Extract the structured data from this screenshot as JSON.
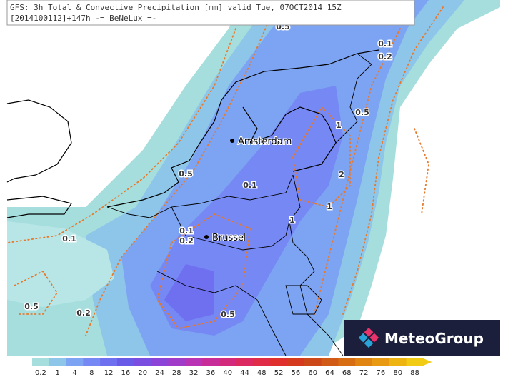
{
  "header": {
    "line1": "GFS: 3h Total & Convective Precipitation [mm] valid Tue, 07OCT2014 15Z",
    "line2": "[2014100112]+147h -= BeNeLux =-"
  },
  "cities": [
    "Amsterdam",
    "Brussel"
  ],
  "contour_labels": [
    "0.5",
    "0.1",
    "0.2",
    "0.5",
    "1",
    "2",
    "1",
    "1",
    "0.1",
    "0.5",
    "0.1",
    "0.1",
    "0.2",
    "0.5",
    "0.2",
    "0.5"
  ],
  "logo": "MeteoGroup",
  "legend": {
    "labels": [
      "0.2",
      "1",
      "4",
      "8",
      "12",
      "16",
      "20",
      "24",
      "28",
      "32",
      "36",
      "40",
      "44",
      "48",
      "52",
      "56",
      "60",
      "64",
      "68",
      "72",
      "76",
      "80",
      "88"
    ],
    "colors": [
      "#a6dede",
      "#8ec6ea",
      "#7da4f2",
      "#7688f4",
      "#6e70f0",
      "#6a5ae8",
      "#7a4ee0",
      "#8c44d8",
      "#a03cc8",
      "#b834b4",
      "#c82c98",
      "#d42a7c",
      "#dc2a60",
      "#e02c46",
      "#e0302e",
      "#d63a1e",
      "#cc4818",
      "#d05a16",
      "#d86e14",
      "#e08412",
      "#e89a12",
      "#eeb412",
      "#f2cc14"
    ]
  }
}
